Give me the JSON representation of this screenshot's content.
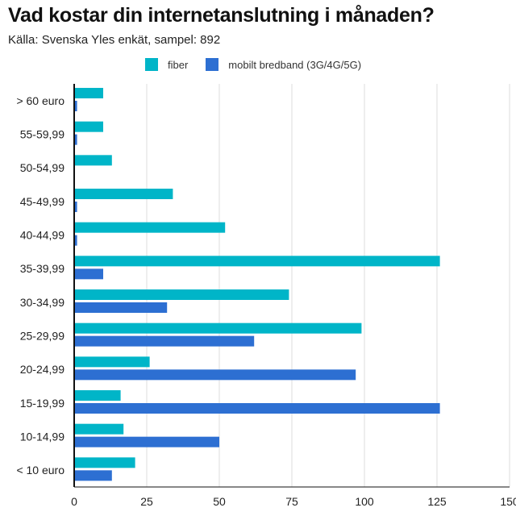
{
  "chart_data": {
    "type": "bar",
    "orientation": "horizontal",
    "title": "Vad kostar din internetanslutning i månaden?",
    "subtitle": "Källa: Svenska Yles enkät, sampel: 892",
    "categories": [
      "> 60 euro",
      "55-59,99",
      "50-54,99",
      "45-49,99",
      "40-44,99",
      "35-39,99",
      "30-34,99",
      "25-29,99",
      "20-24,99",
      "15-19,99",
      "10-14,99",
      "< 10 euro"
    ],
    "series": [
      {
        "name": "fiber",
        "color": "#00b5c8",
        "values": [
          10,
          10,
          13,
          34,
          52,
          126,
          74,
          99,
          26,
          16,
          17,
          21
        ]
      },
      {
        "name": "mobilt bredband (3G/4G/5G)",
        "color": "#2d6fd2",
        "values": [
          1,
          1,
          0,
          1,
          1,
          10,
          32,
          62,
          97,
          126,
          50,
          13
        ]
      }
    ],
    "xlim": [
      0,
      150
    ],
    "xticks": [
      "0",
      "25",
      "50",
      "75",
      "100",
      "125",
      "150"
    ],
    "grid": true,
    "legend_position": "top"
  }
}
